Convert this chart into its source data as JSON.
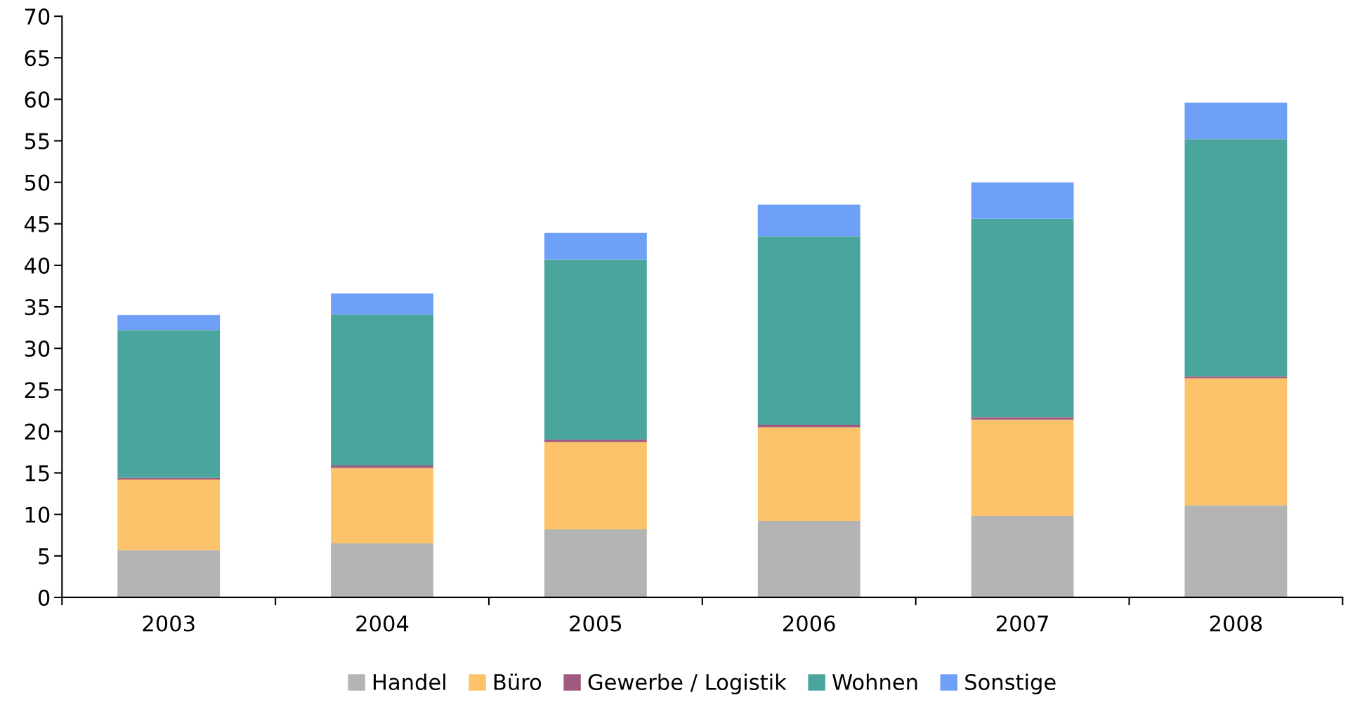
{
  "chart_data": {
    "type": "bar",
    "stacked": true,
    "categories": [
      "2003",
      "2004",
      "2005",
      "2006",
      "2007",
      "2008"
    ],
    "series": [
      {
        "name": "Handel",
        "color": "#b4b4b4",
        "values": [
          5.7,
          6.5,
          8.2,
          9.2,
          9.8,
          11.1
        ]
      },
      {
        "name": "Büro",
        "color": "#fcc36a",
        "values": [
          8.5,
          9.1,
          10.5,
          11.3,
          11.6,
          15.3
        ]
      },
      {
        "name": "Gewerbe / Logistik",
        "color": "#a05a80",
        "values": [
          0.2,
          0.3,
          0.3,
          0.3,
          0.3,
          0.2
        ]
      },
      {
        "name": "Wohnen",
        "color": "#4aa69d",
        "values": [
          17.8,
          18.2,
          21.7,
          22.7,
          23.9,
          28.6
        ]
      },
      {
        "name": "Sonstige",
        "color": "#6fa0f8",
        "values": [
          1.8,
          2.5,
          3.2,
          3.8,
          4.4,
          4.4
        ]
      }
    ],
    "ylim": [
      0,
      70
    ],
    "yticks": [
      0,
      5,
      10,
      15,
      20,
      25,
      30,
      35,
      40,
      45,
      50,
      55,
      60,
      65,
      70
    ],
    "grid": false,
    "legend": "bottom"
  }
}
